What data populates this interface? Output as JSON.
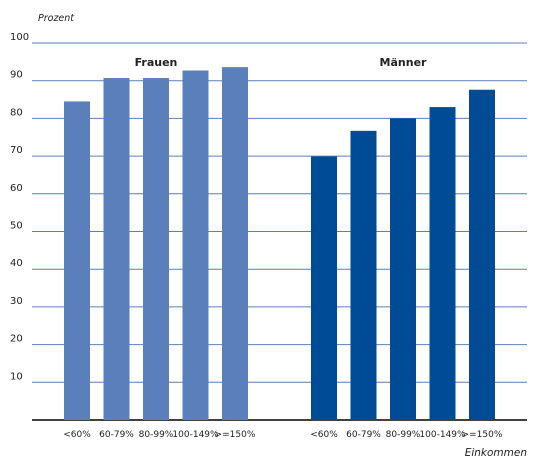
{
  "chart_data": {
    "type": "bar",
    "ylabel": "Prozent",
    "xlabel": "Einkommen",
    "ylim": [
      0,
      100
    ],
    "yticks": [
      10,
      20,
      30,
      40,
      50,
      60,
      70,
      80,
      90,
      100
    ],
    "grid": true,
    "groups": [
      {
        "name": "Frauen",
        "color": "#5b7fba",
        "categories": [
          "<60%",
          "60-79%",
          "80-99%",
          "100-149%",
          ">=150%"
        ],
        "values": [
          84.5,
          90.7,
          90.7,
          92.7,
          93.6
        ]
      },
      {
        "name": "Männer",
        "color": "#004b96",
        "categories": [
          "<60%",
          "60-79%",
          "80-99%",
          "100-149%",
          ">=150%"
        ],
        "values": [
          69.9,
          76.7,
          80.0,
          83.0,
          87.6
        ]
      }
    ],
    "grid_color": "#5b7fba",
    "baseline_color": "#000000"
  }
}
